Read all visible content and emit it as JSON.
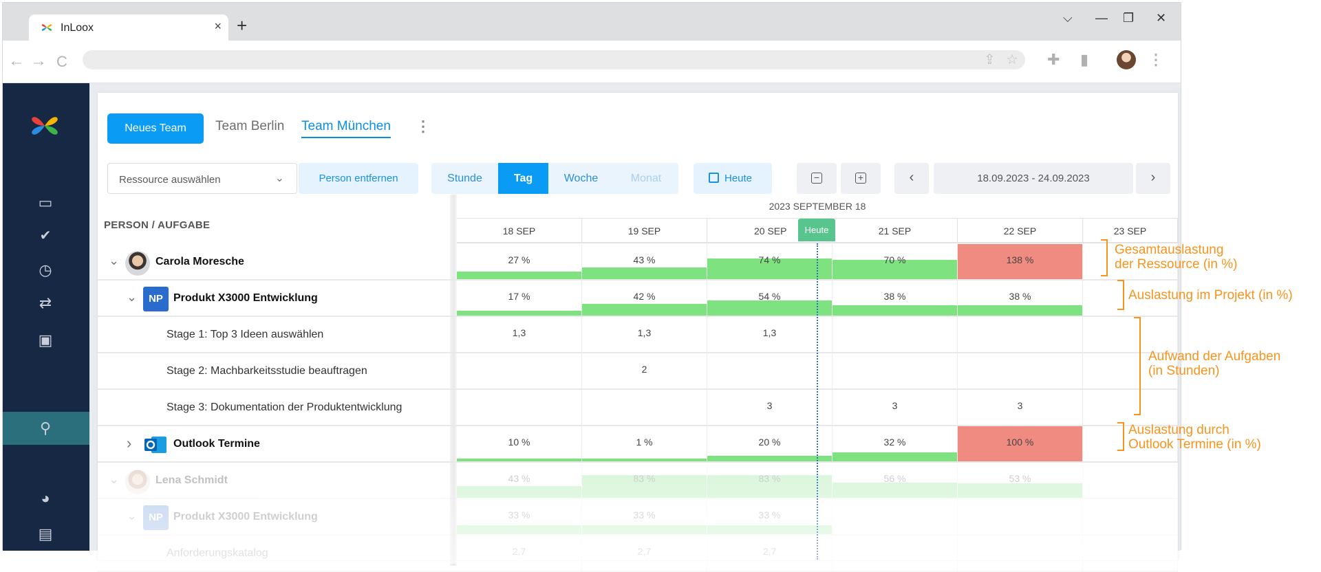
{
  "browser": {
    "tab_title": "InLoox",
    "tab_close": "×",
    "new_tab": "+",
    "window_controls": [
      "⌵",
      "—",
      "❐",
      "✕"
    ],
    "nav": [
      "←",
      "→",
      "C"
    ]
  },
  "sidebar": {
    "icons": [
      "inbox-icon",
      "check-icon",
      "clock-icon",
      "transfer-icon",
      "contact-card-icon",
      "person-icon",
      "pie-chart-icon",
      "report-icon"
    ],
    "active": "person-icon"
  },
  "teams": {
    "new_team_label": "Neues Team",
    "tabs": [
      "Team Berlin",
      "Team München"
    ],
    "active_tab": "Team München",
    "menu": "⋮"
  },
  "filters": {
    "resource_placeholder": "Ressource auswählen",
    "remove_person": "Person entfernen",
    "scales": [
      "Stunde",
      "Tag",
      "Woche",
      "Monat"
    ],
    "active_scale": "Tag",
    "today": "Heute",
    "date_range": "18.09.2023 - 24.09.2023",
    "prev": "‹",
    "next": "›"
  },
  "grid": {
    "person_header": "PERSON / AUFGABE",
    "month_header": "2023 SEPTEMBER 18",
    "days": [
      "18 SEP",
      "19 SEP",
      "20 SEP",
      "21 SEP",
      "22 SEP",
      "23 SEP"
    ],
    "today_badge": "Heute",
    "rows": [
      {
        "label": "Carola Moresche",
        "values": [
          "27 %",
          "43 %",
          "74 %",
          "70 %",
          "138 %",
          ""
        ]
      },
      {
        "badge": "NP",
        "label": "Produkt X3000 Entwicklung",
        "values": [
          "17 %",
          "42 %",
          "54 %",
          "38 %",
          "38 %",
          ""
        ]
      },
      {
        "label": "Stage 1: Top 3 Ideen auswählen",
        "values": [
          "1,3",
          "1,3",
          "1,3",
          "",
          "",
          ""
        ]
      },
      {
        "label": "Stage 2: Machbarkeitsstudie beauftragen",
        "values": [
          "",
          "2",
          "",
          "",
          "",
          ""
        ]
      },
      {
        "label": "Stage 3: Dokumentation der Produktentwicklung",
        "values": [
          "",
          "",
          "3",
          "3",
          "3",
          ""
        ]
      },
      {
        "label": "Outlook Termine",
        "values": [
          "10 %",
          "1 %",
          "20 %",
          "32 %",
          "100 %",
          ""
        ]
      },
      {
        "label": "Lena Schmidt",
        "values": [
          "43 %",
          "83 %",
          "83 %",
          "56 %",
          "53 %",
          ""
        ]
      },
      {
        "badge": "NP",
        "label": "Produkt X3000 Entwicklung",
        "values": [
          "33 %",
          "33 %",
          "33 %",
          "",
          "",
          ""
        ]
      },
      {
        "label": "Anforderungskatalog",
        "values": [
          "2,7",
          "2,7",
          "2,7",
          "",
          "",
          ""
        ]
      }
    ],
    "bar_levels": [
      [
        0.27,
        0.43,
        0.74,
        0.7,
        1.38,
        0
      ],
      [
        0.17,
        0.42,
        0.54,
        0.38,
        0.38,
        0
      ],
      [
        0,
        0,
        0,
        0,
        0,
        0
      ],
      [
        0,
        0,
        0,
        0,
        0,
        0
      ],
      [
        0,
        0,
        0,
        0,
        0,
        0
      ],
      [
        0.1,
        0.01,
        0.2,
        0.32,
        1.0,
        0
      ],
      [
        0.43,
        0.83,
        0.83,
        0.56,
        0.53,
        0
      ],
      [
        0.33,
        0.33,
        0.33,
        0,
        0,
        0
      ],
      [
        0,
        0,
        0,
        0,
        0,
        0
      ]
    ]
  },
  "colors": {
    "ok": "#7ee281",
    "over": "#f08b82",
    "accent": "#0a9cf5",
    "annotation": "#f7941d"
  },
  "annotations": [
    "Gesamtauslastung\nder Ressource (in %)",
    "Auslastung im Projekt (in %)",
    "Aufwand der Aufgaben\n(in Stunden)",
    "Auslastung durch\nOutlook Termine (in %)"
  ]
}
